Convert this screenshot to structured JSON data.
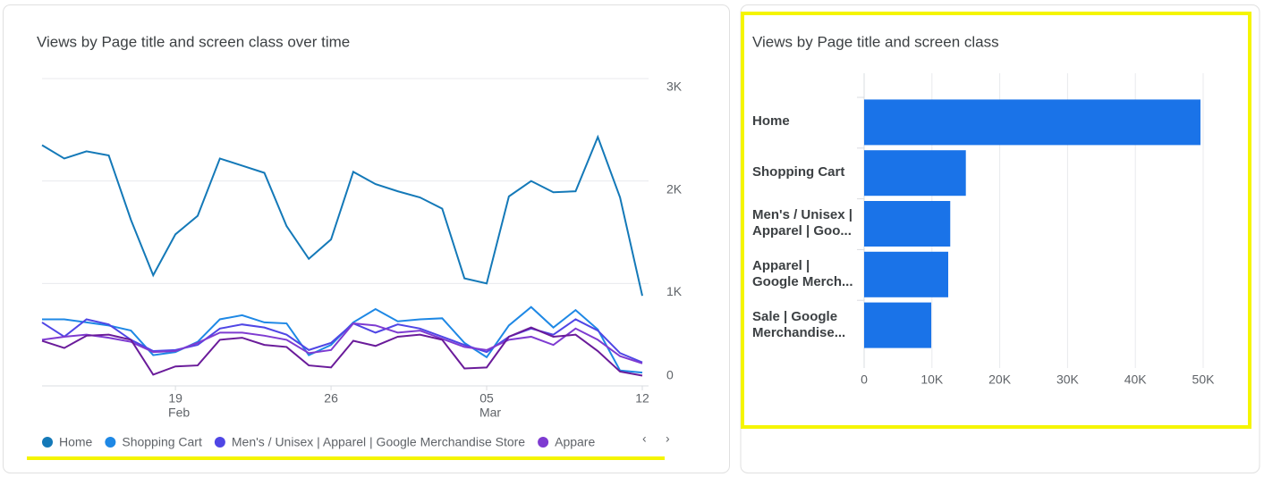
{
  "chart_data": [
    {
      "type": "line",
      "title": "Views by Page title and screen class over time",
      "x": [
        0,
        1,
        2,
        3,
        4,
        5,
        6,
        7,
        8,
        9,
        10,
        11,
        12,
        13,
        14,
        15,
        16,
        17,
        18,
        19,
        20,
        21,
        22,
        23,
        24,
        25,
        26,
        27
      ],
      "xlim": [
        0,
        27
      ],
      "xticks": [
        {
          "value": 6,
          "label": "19"
        },
        {
          "value": 13,
          "label": "26"
        },
        {
          "value": 20,
          "label": "05"
        },
        {
          "value": 27,
          "label": "12"
        }
      ],
      "xmonths": [
        {
          "value": 6,
          "label": "Feb"
        },
        {
          "value": 20,
          "label": "Mar"
        }
      ],
      "ylim": [
        0,
        3000
      ],
      "yticks": [
        0,
        {
          "value": 1000,
          "label": "1K"
        },
        {
          "value": 2000,
          "label": "2K"
        },
        {
          "value": 3000,
          "label": "3K"
        }
      ],
      "grid": true,
      "series": [
        {
          "name": "Home",
          "color": "#1479b8",
          "values": [
            2350,
            2220,
            2290,
            2250,
            1620,
            1080,
            1480,
            1660,
            2220,
            2150,
            2080,
            1560,
            1240,
            1430,
            2090,
            1970,
            1900,
            1840,
            1730,
            1050,
            1000,
            1850,
            2000,
            1890,
            1900,
            2430,
            1840,
            880
          ]
        },
        {
          "name": "Shopping Cart",
          "color": "#1e88e5",
          "values": [
            650,
            650,
            620,
            590,
            540,
            300,
            330,
            430,
            650,
            690,
            620,
            610,
            300,
            400,
            620,
            750,
            630,
            650,
            660,
            420,
            280,
            590,
            770,
            570,
            740,
            550,
            150,
            130
          ]
        },
        {
          "name": "Men's / Unisex | Apparel | Google Merchandise Store",
          "color": "#4f46e5",
          "values": [
            620,
            480,
            650,
            600,
            450,
            340,
            350,
            400,
            560,
            600,
            570,
            500,
            350,
            420,
            610,
            520,
            600,
            560,
            480,
            400,
            330,
            480,
            560,
            500,
            650,
            540,
            320,
            230
          ]
        },
        {
          "name": "Appare",
          "color": "#7e3bd1",
          "values": [
            450,
            480,
            500,
            470,
            430,
            330,
            340,
            420,
            520,
            520,
            490,
            450,
            320,
            350,
            610,
            590,
            520,
            540,
            460,
            380,
            350,
            450,
            480,
            400,
            560,
            450,
            290,
            220
          ]
        },
        {
          "color": "#6a1b9a",
          "values": [
            440,
            370,
            490,
            500,
            450,
            110,
            190,
            200,
            450,
            470,
            400,
            380,
            200,
            180,
            440,
            390,
            480,
            500,
            450,
            170,
            180,
            480,
            570,
            480,
            500,
            340,
            140,
            100
          ]
        }
      ]
    },
    {
      "type": "barh",
      "title": "Views by Page title and screen class",
      "categories": [
        "Home",
        "Shopping Cart",
        "Men's / Unisex |\nApparel | Goo...",
        "Apparel |\nGoogle Merch...",
        "Sale | Google\nMerchandise..."
      ],
      "values": [
        49600,
        15000,
        12700,
        12400,
        9900
      ],
      "color": "#1a73e8",
      "xlim": [
        0,
        50000
      ],
      "xticks": [
        0,
        {
          "value": 10000,
          "label": "10K"
        },
        {
          "value": 20000,
          "label": "20K"
        },
        {
          "value": 30000,
          "label": "30K"
        },
        {
          "value": 40000,
          "label": "40K"
        },
        {
          "value": 50000,
          "label": "50K"
        }
      ],
      "grid": true
    }
  ]
}
